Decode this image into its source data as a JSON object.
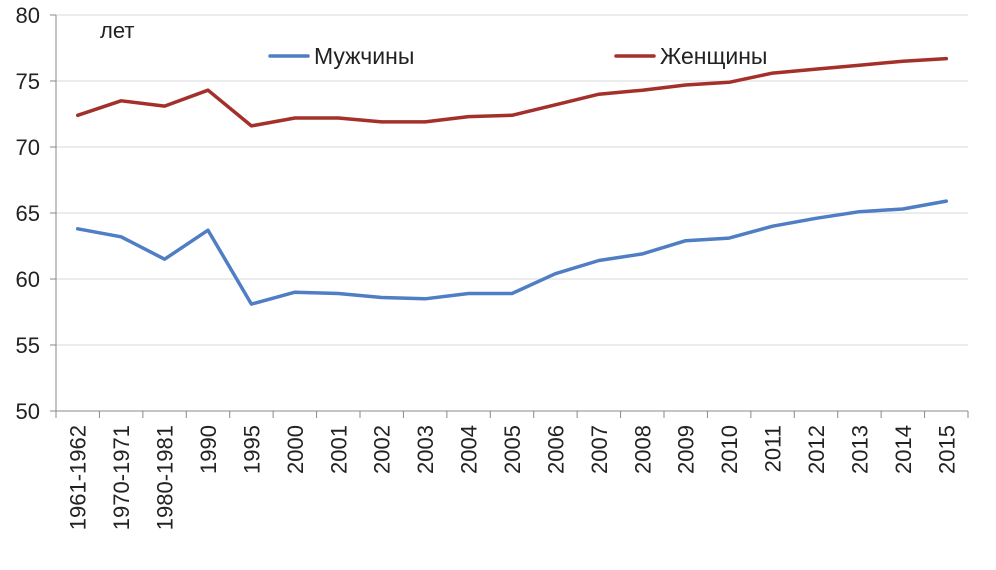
{
  "chart_data": {
    "type": "line",
    "unit_label": "лет",
    "categories": [
      "1961-1962",
      "1970-1971",
      "1980-1981",
      "1990",
      "1995",
      "2000",
      "2001",
      "2002",
      "2003",
      "2004",
      "2005",
      "2006",
      "2007",
      "2008",
      "2009",
      "2010",
      "2011",
      "2012",
      "2013",
      "2014",
      "2015"
    ],
    "series": [
      {
        "name": "Мужчины",
        "color": "#4f7ec4",
        "values": [
          63.8,
          63.2,
          61.5,
          63.7,
          58.1,
          59.0,
          58.9,
          58.6,
          58.5,
          58.9,
          58.9,
          60.4,
          61.4,
          61.9,
          62.9,
          63.1,
          64.0,
          64.6,
          65.1,
          65.3,
          65.9
        ]
      },
      {
        "name": "Женщины",
        "color": "#a3302a",
        "values": [
          72.4,
          73.5,
          73.1,
          74.3,
          71.6,
          72.2,
          72.2,
          71.9,
          71.9,
          72.3,
          72.4,
          73.2,
          74.0,
          74.3,
          74.7,
          74.9,
          75.6,
          75.9,
          76.2,
          76.5,
          76.7
        ]
      }
    ],
    "ylim": [
      50,
      80
    ],
    "yticks": [
      50,
      55,
      60,
      65,
      70,
      75,
      80
    ],
    "grid": true,
    "legend_position": "top",
    "axis_color": "#888888",
    "grid_color": "#d9d9d9"
  }
}
